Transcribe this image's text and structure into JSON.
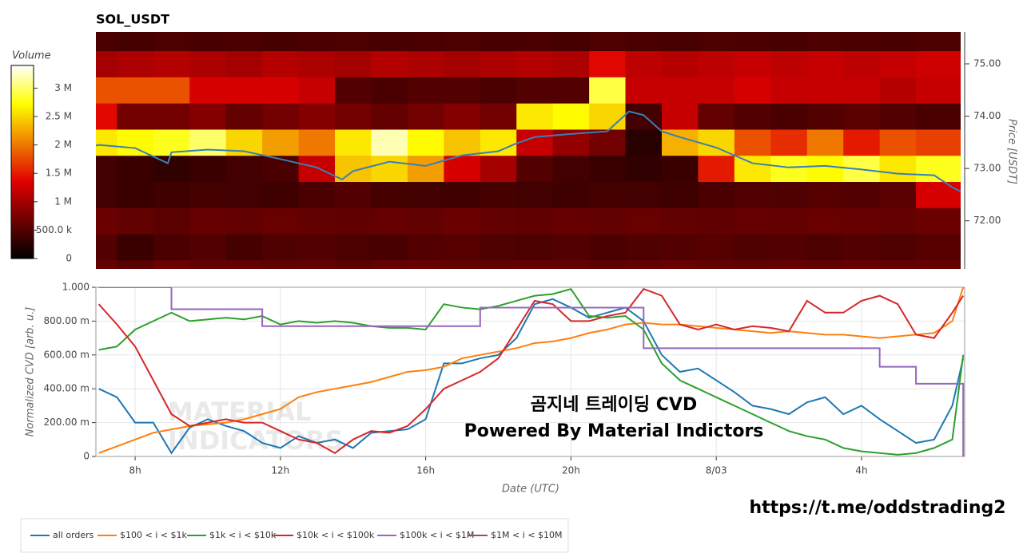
{
  "chart_data": [
    {
      "type": "heatmap",
      "title": "SOL_USDT",
      "y_label": "Price [USDT]",
      "x_bins": [
        6.92,
        7.5,
        8.5,
        9.5,
        10.5,
        11.5,
        12.5,
        13.5,
        14.5,
        15.5,
        16.5,
        17.5,
        18.5,
        19.5,
        20.5,
        21.5,
        22.5,
        23.5,
        24.5,
        25.5,
        26.5,
        27.5,
        28.5,
        29.5,
        30.73
      ],
      "y": [
        71,
        71.5,
        72,
        72.5,
        73,
        73.5,
        74,
        74.5,
        75,
        75.5
      ],
      "z": [
        [
          600000,
          550000,
          650000,
          600000,
          620000,
          580000,
          600000,
          560000,
          620000,
          640000,
          600000,
          580000,
          620000,
          600000,
          560000,
          600000,
          650000,
          600000,
          580000,
          620000,
          600000,
          640000,
          600000,
          620000
        ],
        [
          500000,
          350000,
          450000,
          500000,
          420000,
          480000,
          500000,
          460000,
          440000,
          500000,
          520000,
          480000,
          460000,
          500000,
          450000,
          480000,
          500000,
          520000,
          480000,
          500000,
          460000,
          500000,
          480000,
          520000
        ],
        [
          650000,
          600000,
          550000,
          620000,
          600000,
          640000,
          600000,
          580000,
          620000,
          600000,
          650000,
          600000,
          580000,
          620000,
          600000,
          640000,
          600000,
          580000,
          620000,
          600000,
          640000,
          620000,
          600000,
          650000
        ],
        [
          400000,
          350000,
          380000,
          420000,
          400000,
          380000,
          450000,
          500000,
          420000,
          400000,
          380000,
          420000,
          400000,
          380000,
          420000,
          400000,
          380000,
          450000,
          500000,
          480000,
          520000,
          500000,
          550000,
          1300000
        ],
        [
          400000,
          350000,
          300000,
          350000,
          400000,
          450000,
          1200000,
          2400000,
          2500000,
          2200000,
          1300000,
          1000000,
          500000,
          400000,
          350000,
          300000,
          350000,
          1500000,
          2600000,
          2800000,
          2700000,
          2900000,
          2600000,
          2800000
        ],
        [
          2600000,
          2700000,
          2800000,
          3000000,
          2500000,
          2200000,
          2000000,
          2600000,
          3200000,
          2700000,
          2400000,
          2600000,
          1200000,
          900000,
          700000,
          250000,
          2300000,
          2500000,
          1800000,
          1600000,
          2000000,
          1500000,
          1800000,
          1700000
        ],
        [
          1400000,
          700000,
          700000,
          800000,
          600000,
          700000,
          800000,
          700000,
          600000,
          700000,
          800000,
          700000,
          2600000,
          2700000,
          2500000,
          400000,
          1200000,
          600000,
          500000,
          450000,
          500000,
          550000,
          500000,
          450000
        ],
        [
          1800000,
          1800000,
          1800000,
          1300000,
          1300000,
          1300000,
          1200000,
          500000,
          450000,
          500000,
          500000,
          450000,
          500000,
          500000,
          2900000,
          1200000,
          1200000,
          1200000,
          1300000,
          1200000,
          1200000,
          1200000,
          1100000,
          1200000
        ],
        [
          1000000,
          1050000,
          1100000,
          1050000,
          1000000,
          1100000,
          1050000,
          1000000,
          1100000,
          1050000,
          1000000,
          1050000,
          1100000,
          1050000,
          1400000,
          1150000,
          1100000,
          1150000,
          1200000,
          1150000,
          1200000,
          1150000,
          1200000,
          1250000
        ],
        [
          450000,
          420000,
          460000,
          440000,
          450000,
          430000,
          450000,
          470000,
          440000,
          450000,
          460000,
          440000,
          450000,
          430000,
          480000,
          450000,
          440000,
          460000,
          450000,
          440000,
          460000,
          450000,
          440000,
          470000
        ]
      ],
      "colormap": {
        "stops": [
          0,
          0.4,
          0.8,
          1
        ],
        "colors": [
          "#000000",
          "#e00000",
          "#ffff00",
          "#ffffff"
        ]
      },
      "colorbar": {
        "title": "Volume",
        "lim": [
          0,
          3400000
        ],
        "ticks": [
          0,
          {
            "value": 500000,
            "label": "500.0 k"
          },
          {
            "value": 1000000,
            "label": "1 M"
          },
          {
            "value": 1500000,
            "label": "1.5 M"
          },
          {
            "value": 2000000,
            "label": "2 M"
          },
          {
            "value": 2500000,
            "label": "2.5 M"
          },
          {
            "value": 3000000,
            "label": "3 M"
          }
        ]
      },
      "xlim": [
        6.92,
        30.73
      ],
      "ylim": [
        71.08,
        75.61
      ],
      "yticks": [
        {
          "value": 72,
          "label": "72.00"
        },
        {
          "value": 73,
          "label": "73.00"
        },
        {
          "value": 74,
          "label": "74.00"
        },
        {
          "value": 75,
          "label": "75.00"
        }
      ],
      "price_line": {
        "color": "#3a7fb5",
        "x": [
          6.92,
          7,
          8,
          8.9,
          9,
          10,
          11,
          12,
          13,
          13.7,
          14,
          15,
          16,
          17,
          18,
          18.5,
          19,
          20,
          21,
          21.6,
          22,
          22.5,
          23,
          24,
          25,
          26,
          27,
          28,
          29,
          30,
          30.5,
          30.73
        ],
        "values": [
          73.44,
          73.45,
          73.39,
          73.1,
          73.31,
          73.36,
          73.33,
          73.18,
          73.02,
          72.79,
          72.95,
          73.13,
          73.05,
          73.25,
          73.33,
          73.48,
          73.6,
          73.66,
          73.71,
          74.09,
          74.02,
          73.71,
          73.6,
          73.4,
          73.1,
          73.02,
          73.05,
          72.98,
          72.9,
          72.87,
          72.64,
          72.56
        ]
      }
    },
    {
      "type": "line",
      "y_label": "Normalized CVD [arb. u.]",
      "x_label": "Date (UTC)",
      "grid": true,
      "xlim": [
        6.92,
        30.84
      ],
      "ylim": [
        0,
        1
      ],
      "xticks": [
        {
          "value": 8,
          "label": "8h"
        },
        {
          "value": 12,
          "label": "12h"
        },
        {
          "value": 16,
          "label": "16h"
        },
        {
          "value": 20,
          "label": "20h"
        },
        {
          "value": 24,
          "label": "8/03"
        },
        {
          "value": 28,
          "label": "4h"
        }
      ],
      "yticks": [
        0,
        {
          "value": 0.2,
          "label": "200.00 m"
        },
        {
          "value": 0.4,
          "label": "400.00 m"
        },
        {
          "value": 0.6,
          "label": "600.00 m"
        },
        {
          "value": 0.8,
          "label": "800.00 m"
        },
        {
          "value": 1,
          "label": "1.000"
        }
      ],
      "x": [
        7,
        7.5,
        8,
        8.5,
        9,
        9.5,
        10,
        10.5,
        11,
        11.5,
        12,
        12.5,
        13,
        13.5,
        14,
        14.5,
        15,
        15.5,
        16,
        16.5,
        17,
        17.5,
        18,
        18.5,
        19,
        19.5,
        20,
        20.5,
        21,
        21.5,
        22,
        22.5,
        23,
        23.5,
        24,
        24.5,
        25,
        25.5,
        26,
        26.5,
        27,
        27.5,
        28,
        28.5,
        29,
        29.5,
        30,
        30.5,
        30.8
      ],
      "series": [
        {
          "name": "all orders",
          "color": "#1f77b4",
          "values": [
            0.4,
            0.35,
            0.2,
            0.2,
            0.02,
            0.17,
            0.22,
            0.18,
            0.15,
            0.08,
            0.05,
            0.12,
            0.08,
            0.1,
            0.05,
            0.14,
            0.15,
            0.16,
            0.22,
            0.55,
            0.55,
            0.58,
            0.6,
            0.7,
            0.9,
            0.93,
            0.88,
            0.82,
            0.85,
            0.88,
            0.8,
            0.6,
            0.5,
            0.52,
            0.45,
            0.38,
            0.3,
            0.28,
            0.25,
            0.32,
            0.35,
            0.25,
            0.3,
            0.22,
            0.15,
            0.08,
            0.1,
            0.3,
            0.58
          ]
        },
        {
          "name": "$100 < i < $1k",
          "color": "#ff7f0e",
          "values": [
            0.02,
            0.06,
            0.1,
            0.14,
            0.16,
            0.18,
            0.19,
            0.2,
            0.22,
            0.25,
            0.28,
            0.35,
            0.38,
            0.4,
            0.42,
            0.44,
            0.47,
            0.5,
            0.51,
            0.53,
            0.58,
            0.6,
            0.62,
            0.64,
            0.67,
            0.68,
            0.7,
            0.73,
            0.75,
            0.78,
            0.79,
            0.78,
            0.78,
            0.77,
            0.76,
            0.75,
            0.74,
            0.73,
            0.74,
            0.73,
            0.72,
            0.72,
            0.71,
            0.7,
            0.71,
            0.72,
            0.73,
            0.8,
            1.0
          ]
        },
        {
          "name": "$1k < i < $10k",
          "color": "#2ca02c",
          "values": [
            0.63,
            0.65,
            0.75,
            0.8,
            0.85,
            0.8,
            0.81,
            0.82,
            0.81,
            0.83,
            0.78,
            0.8,
            0.79,
            0.8,
            0.79,
            0.77,
            0.76,
            0.76,
            0.75,
            0.9,
            0.88,
            0.87,
            0.89,
            0.92,
            0.95,
            0.96,
            0.99,
            0.83,
            0.82,
            0.83,
            0.75,
            0.55,
            0.45,
            0.4,
            0.35,
            0.3,
            0.25,
            0.2,
            0.15,
            0.12,
            0.1,
            0.05,
            0.03,
            0.02,
            0.01,
            0.02,
            0.05,
            0.1,
            0.6
          ]
        },
        {
          "name": "$10k < i < $100k",
          "color": "#d62728",
          "values": [
            0.9,
            0.78,
            0.65,
            0.45,
            0.25,
            0.18,
            0.2,
            0.22,
            0.2,
            0.2,
            0.15,
            0.1,
            0.08,
            0.02,
            0.1,
            0.15,
            0.14,
            0.18,
            0.28,
            0.4,
            0.45,
            0.5,
            0.58,
            0.75,
            0.92,
            0.9,
            0.8,
            0.8,
            0.83,
            0.85,
            0.99,
            0.95,
            0.78,
            0.75,
            0.78,
            0.75,
            0.77,
            0.76,
            0.74,
            0.92,
            0.85,
            0.85,
            0.92,
            0.95,
            0.9,
            0.72,
            0.7,
            0.85,
            0.95
          ]
        },
        {
          "name": "$100k < i < $1M",
          "color": "#9467bd",
          "line_shape": "hv",
          "values": [
            1,
            1,
            1,
            1,
            0.87,
            0.87,
            0.87,
            0.87,
            0.87,
            0.77,
            0.77,
            0.77,
            0.77,
            0.77,
            0.77,
            0.77,
            0.77,
            0.77,
            0.77,
            0.77,
            0.77,
            0.88,
            0.88,
            0.88,
            0.88,
            0.88,
            0.88,
            0.88,
            0.88,
            0.88,
            0.64,
            0.64,
            0.64,
            0.64,
            0.64,
            0.64,
            0.64,
            0.64,
            0.64,
            0.64,
            0.64,
            0.64,
            0.64,
            0.53,
            0.53,
            0.43,
            0.43,
            0.43,
            0
          ]
        },
        {
          "name": "$1M < i < $10M",
          "color": "#8c564b",
          "values": [
            null,
            null,
            null,
            null,
            null,
            null,
            null,
            null,
            null,
            null,
            null,
            null,
            null,
            null,
            null,
            null,
            null,
            null,
            null,
            null,
            null,
            null,
            null,
            null,
            null,
            null,
            null,
            null,
            null,
            null,
            null,
            null,
            null,
            null,
            null,
            null,
            null,
            null,
            null,
            null,
            null,
            null,
            null,
            null,
            null,
            null,
            null,
            null,
            null
          ]
        }
      ],
      "annotations": [
        "곰지네 트레이딩 CVD",
        "Powered By Material Indictors"
      ],
      "watermark": [
        "MATERIAL",
        "INDICATORS"
      ],
      "link": "https://t.me/oddstrading2"
    }
  ]
}
